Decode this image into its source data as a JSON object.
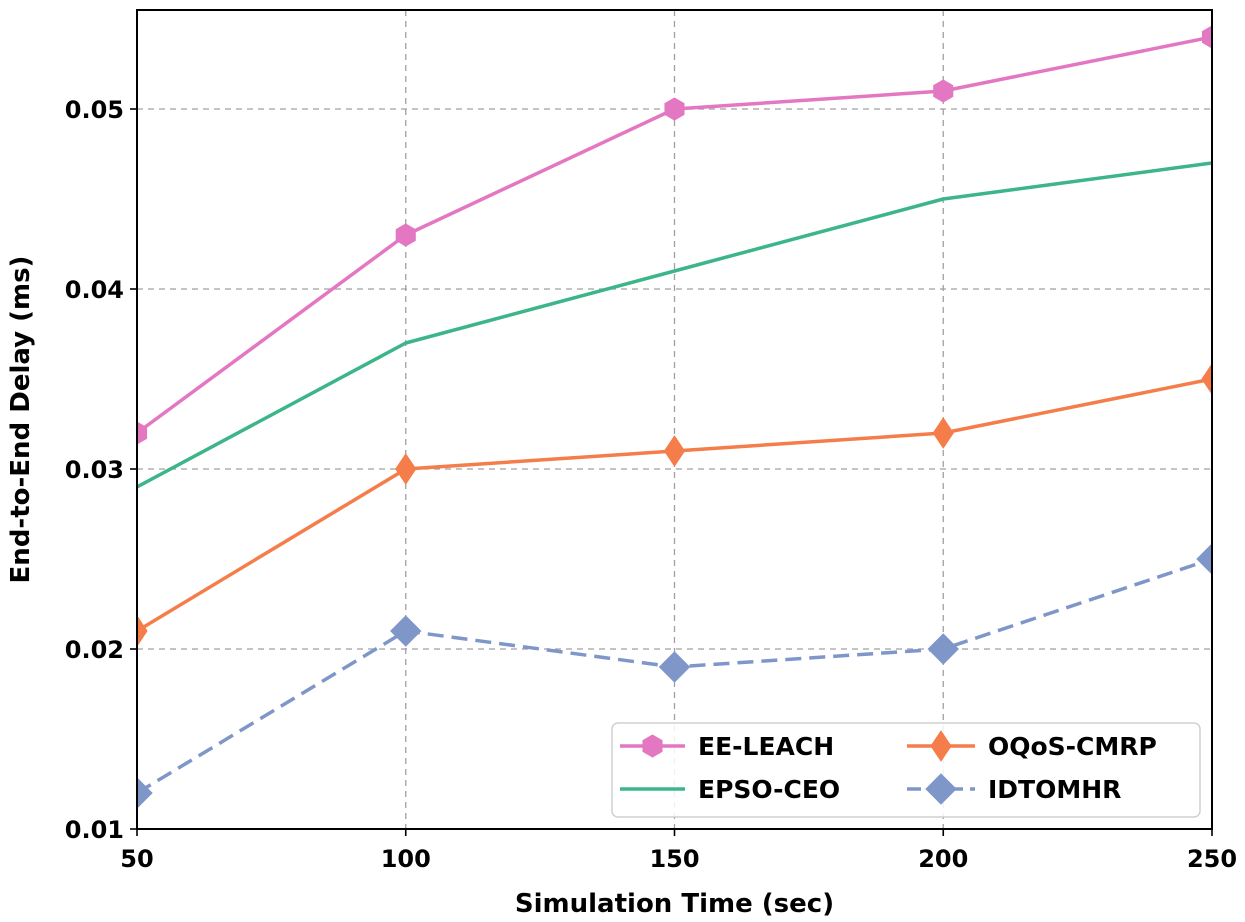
{
  "chart_data": {
    "type": "line",
    "title": "",
    "xlabel": "Simulation Time (sec)",
    "ylabel": "End-to-End Delay (ms)",
    "x": [
      50,
      100,
      150,
      200,
      250
    ],
    "xticks": [
      "50",
      "100",
      "150",
      "200",
      "250"
    ],
    "yticks": [
      "0.01",
      "0.02",
      "0.03",
      "0.04",
      "0.05"
    ],
    "xlim": [
      50,
      250
    ],
    "ylim": [
      0.01,
      0.0555
    ],
    "grid": true,
    "legend_position": "lower-right",
    "series": [
      {
        "name": "EE-LEACH",
        "values": [
          0.032,
          0.043,
          0.05,
          0.051,
          0.054
        ],
        "color": "#e377c2",
        "marker": "hexagon",
        "dash": "solid"
      },
      {
        "name": "EPSO-CEO",
        "values": [
          0.029,
          0.037,
          0.041,
          0.045,
          0.047
        ],
        "color": "#3cb589",
        "marker": "none",
        "dash": "solid"
      },
      {
        "name": "OQoS-CMRP",
        "values": [
          0.021,
          0.03,
          0.031,
          0.032,
          0.035
        ],
        "color": "#f47d4a",
        "marker": "thin-diamond",
        "dash": "solid"
      },
      {
        "name": "IDTOMHR",
        "values": [
          0.012,
          0.021,
          0.019,
          0.02,
          0.025
        ],
        "color": "#7f96c9",
        "marker": "diamond",
        "dash": "dashed"
      }
    ]
  }
}
